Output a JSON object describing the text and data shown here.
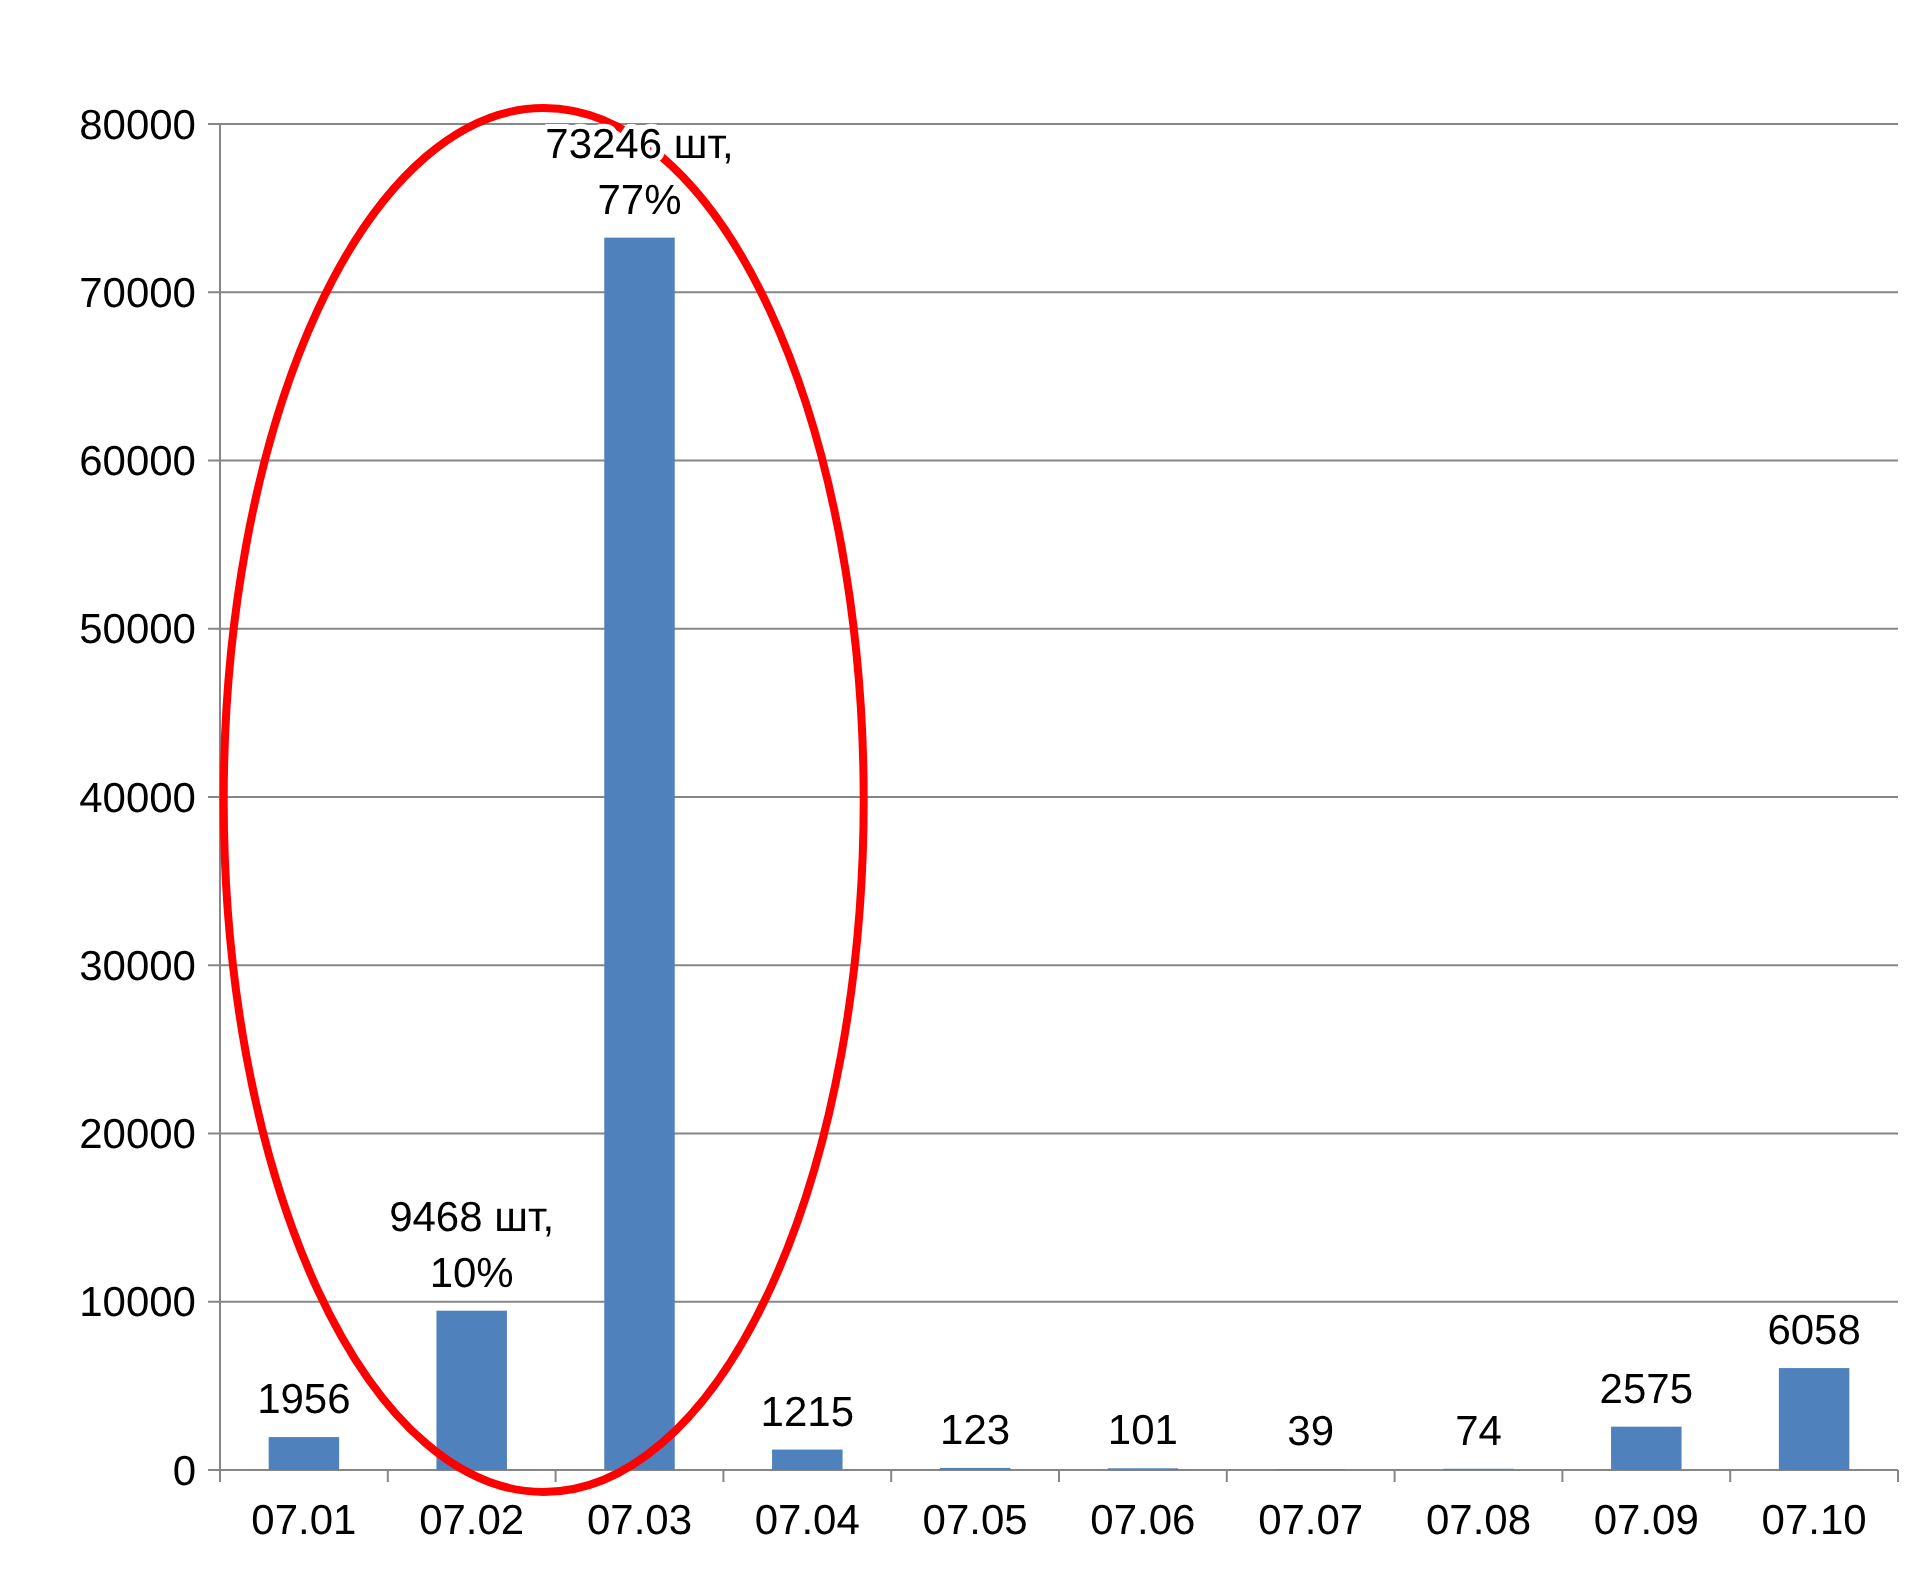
{
  "chart_data": {
    "type": "bar",
    "categories": [
      "07.01",
      "07.02",
      "07.03",
      "07.04",
      "07.05",
      "07.06",
      "07.07",
      "07.08",
      "07.09",
      "07.10"
    ],
    "values": [
      1956,
      9468,
      73246,
      1215,
      123,
      101,
      39,
      74,
      2575,
      6058
    ],
    "value_labels": [
      "1956",
      "9468 шт,\n10%",
      "73246 шт,\n77%",
      "1215",
      "123",
      "101",
      "39",
      "74",
      "2575",
      "6058"
    ],
    "color": "#4f81bd",
    "ylim": [
      0,
      80000
    ],
    "yticks": [
      0,
      10000,
      20000,
      30000,
      40000,
      50000,
      60000,
      70000,
      80000
    ],
    "grid": "y"
  }
}
